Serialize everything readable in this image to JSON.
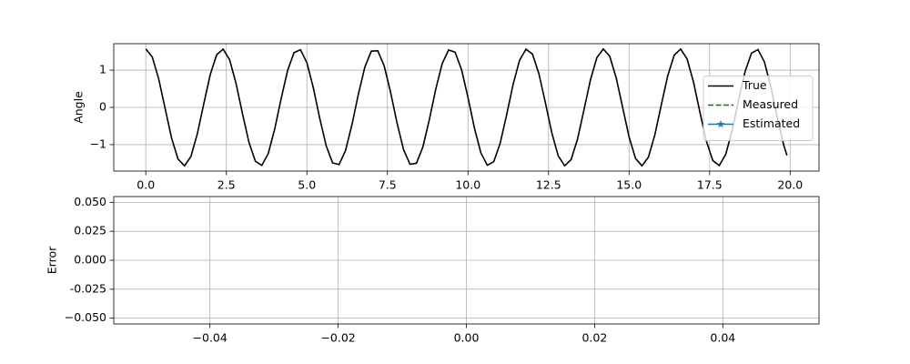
{
  "chart_data": [
    {
      "type": "line",
      "ylabel": "Angle",
      "grid": true,
      "legend": "center right",
      "xlim": [
        -0.995,
        20.895
      ],
      "ylim": [
        -1.71,
        1.71
      ],
      "xticks": [
        {
          "value": 0,
          "label": "0.0"
        },
        2.5,
        {
          "value": 5,
          "label": "5.0"
        },
        7.5,
        {
          "value": 10,
          "label": "10.0"
        },
        12.5,
        {
          "value": 15,
          "label": "15.0"
        },
        17.5,
        {
          "value": 20,
          "label": "20.0"
        }
      ],
      "yticks": [
        {
          "value": -1,
          "label": "−1"
        },
        0,
        1
      ],
      "x": [
        0,
        0.2,
        0.4,
        0.6,
        0.8,
        1,
        1.2,
        1.4,
        1.6,
        1.8,
        2,
        2.2,
        2.4,
        2.6,
        2.8,
        3,
        3.2,
        3.4,
        3.6,
        3.8,
        4,
        4.2,
        4.4,
        4.6,
        4.8,
        5,
        5.2,
        5.4,
        5.6,
        5.8,
        6,
        6.2,
        6.4,
        6.6,
        6.8,
        7,
        7.2,
        7.4,
        7.6,
        7.8,
        8,
        8.2,
        8.4,
        8.6,
        8.8,
        9,
        9.2,
        9.4,
        9.6,
        9.8,
        10,
        10.2,
        10.4,
        10.6,
        10.8,
        11,
        11.2,
        11.4,
        11.6,
        11.8,
        12,
        12.2,
        12.4,
        12.6,
        12.8,
        13,
        13.2,
        13.4,
        13.6,
        13.8,
        14,
        14.2,
        14.4,
        14.6,
        14.8,
        15,
        15.2,
        15.4,
        15.6,
        15.8,
        16,
        16.2,
        16.4,
        16.6,
        16.8,
        17,
        17.2,
        17.4,
        17.6,
        17.8,
        18,
        18.2,
        18.4,
        18.6,
        18.8,
        19,
        19.2,
        19.4,
        19.6,
        19.8,
        19.9
      ],
      "series": [
        {
          "name": "True",
          "color": "#000000",
          "linestyle": "solid",
          "values": [
            1.57,
            1.354,
            0.766,
            -0.033,
            -0.823,
            -1.386,
            -1.569,
            -1.319,
            -0.707,
            0.1,
            0.879,
            1.416,
            1.564,
            1.282,
            0.647,
            -0.166,
            -0.933,
            -1.444,
            -1.557,
            -1.242,
            -0.586,
            0.232,
            0.986,
            1.469,
            1.547,
            1.2,
            0.523,
            -0.298,
            -1.037,
            -1.491,
            -1.535,
            -1.156,
            -0.46,
            0.363,
            1.086,
            1.511,
            1.519,
            1.11,
            0.396,
            -0.427,
            -1.133,
            -1.527,
            -1.501,
            -1.062,
            -0.331,
            0.491,
            1.178,
            1.541,
            1.481,
            1.012,
            0.266,
            -0.554,
            -1.221,
            -1.553,
            -1.457,
            -0.961,
            -0.2,
            0.616,
            1.262,
            1.561,
            1.431,
            0.907,
            0.134,
            -0.676,
            -1.3,
            -1.567,
            -1.402,
            -0.852,
            -0.067,
            0.736,
            1.336,
            1.57,
            1.371,
            0.795,
            0.001,
            -0.794,
            -1.37,
            -1.57,
            -1.337,
            -0.737,
            0.066,
            0.85,
            1.401,
            1.567,
            1.301,
            0.678,
            -0.132,
            -0.906,
            -1.43,
            -1.561,
            -1.263,
            -0.617,
            0.198,
            0.959,
            1.456,
            1.553,
            1.222,
            0.555,
            -0.264,
            -1.011,
            -1.29
          ]
        },
        {
          "name": "Measured",
          "color": "#008000",
          "linestyle": "dashed"
        },
        {
          "name": "Estimated",
          "color": "#1f77b4",
          "linestyle": "solid",
          "marker": "*"
        }
      ]
    },
    {
      "type": "line",
      "ylabel": "Error",
      "grid": true,
      "xlim": [
        -0.055,
        0.055
      ],
      "ylim": [
        -0.055,
        0.055
      ],
      "xticks": [
        {
          "value": -0.04,
          "label": "−0.04"
        },
        {
          "value": -0.02,
          "label": "−0.02"
        },
        {
          "value": 0,
          "label": "0.00"
        },
        0.02,
        0.04
      ],
      "yticks": [
        {
          "value": -0.05,
          "label": "−0.050"
        },
        -0.025,
        {
          "value": 0,
          "label": "0.000"
        },
        0.025,
        {
          "value": 0.05,
          "label": "0.050"
        }
      ]
    }
  ]
}
